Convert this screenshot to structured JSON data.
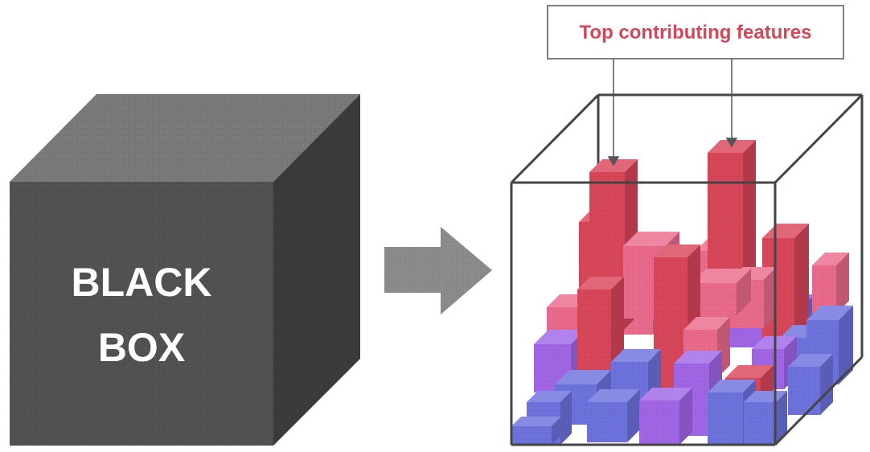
{
  "black_box": {
    "label_line1": "BLACK",
    "label_line2": "BOX",
    "front_color": "#525252",
    "top_color": "#7a7a7a",
    "side_color": "#3b3b3b",
    "label_color": "#ffffff"
  },
  "arrow": {
    "color": "#8c8c8c",
    "direction": "right"
  },
  "explained_box": {
    "callout_label": "Top contributing features",
    "callout_color": "#d4465a",
    "frame_color": "#444444",
    "palette": {
      "red": "#d8465a",
      "pink": "#ea6a8c",
      "purple": "#a066e6",
      "blue": "#6e72dd"
    }
  }
}
